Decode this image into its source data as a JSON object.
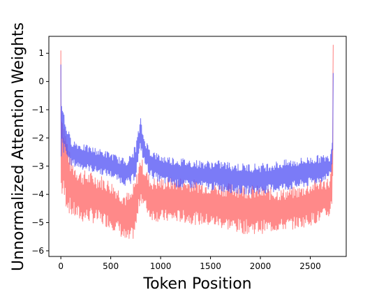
{
  "chart_data": {
    "type": "line",
    "title": "",
    "xlabel": "Token Position",
    "ylabel": "Unnormalized Attention Weights",
    "xlim": [
      -120,
      2860
    ],
    "ylim": [
      -6.2,
      1.6
    ],
    "xticks": [
      0,
      500,
      1000,
      1500,
      2000,
      2500
    ],
    "xtick_labels": [
      "0",
      "500",
      "1000",
      "1500",
      "2000",
      "2500"
    ],
    "yticks": [
      1,
      0,
      -1,
      -2,
      -3,
      -4,
      -5,
      -6
    ],
    "ytick_labels": [
      "1",
      "0",
      "−1",
      "−2",
      "−3",
      "−4",
      "−5",
      "−6"
    ],
    "grid": false,
    "legend": "none",
    "series": [
      {
        "color": "#ff6b6b",
        "opacity": 0.8,
        "description_points": {
          "x": [
            0,
            10,
            40,
            100,
            200,
            300,
            400,
            500,
            600,
            650,
            700,
            750,
            800,
            830,
            900,
            1000,
            1200,
            1400,
            1600,
            1800,
            2000,
            2200,
            2400,
            2600,
            2700,
            2720,
            2730
          ],
          "upper": [
            1.1,
            -0.8,
            -1.5,
            -2.7,
            -3.1,
            -3.2,
            -3.3,
            -3.5,
            -3.8,
            -3.9,
            -3.9,
            -3.4,
            -2.6,
            -2.9,
            -3.4,
            -3.4,
            -3.4,
            -3.5,
            -3.6,
            -3.6,
            -3.7,
            -3.8,
            -3.7,
            -3.4,
            -3.4,
            -2.3,
            1.3
          ],
          "lower": [
            -4.5,
            -4.2,
            -4.4,
            -4.8,
            -5.0,
            -5.0,
            -5.1,
            -5.2,
            -5.5,
            -5.8,
            -5.8,
            -5.4,
            -4.2,
            -4.5,
            -4.9,
            -5.0,
            -5.0,
            -5.1,
            -5.2,
            -5.4,
            -5.4,
            -5.3,
            -5.2,
            -5.0,
            -4.8,
            -4.3,
            -3.0
          ]
        }
      },
      {
        "color": "#5a5af5",
        "opacity": 0.8,
        "description_points": {
          "x": [
            0,
            10,
            40,
            100,
            200,
            300,
            400,
            500,
            600,
            650,
            700,
            750,
            800,
            830,
            900,
            1000,
            1200,
            1400,
            1600,
            1800,
            2000,
            2200,
            2400,
            2600,
            2700,
            2720,
            2730
          ],
          "upper": [
            0.6,
            -0.5,
            -1.3,
            -2.0,
            -2.2,
            -2.3,
            -2.4,
            -2.5,
            -2.7,
            -2.7,
            -2.6,
            -2.2,
            -1.3,
            -1.9,
            -2.4,
            -2.6,
            -2.7,
            -2.8,
            -2.8,
            -2.9,
            -2.9,
            -2.8,
            -2.7,
            -2.6,
            -2.6,
            -1.9,
            0.3
          ],
          "lower": [
            -3.7,
            -2.5,
            -2.6,
            -3.0,
            -3.1,
            -3.2,
            -3.3,
            -3.4,
            -3.6,
            -3.7,
            -3.7,
            -3.4,
            -2.4,
            -2.9,
            -3.4,
            -3.6,
            -3.8,
            -3.8,
            -3.9,
            -4.0,
            -4.0,
            -3.9,
            -3.8,
            -3.6,
            -3.4,
            -3.0,
            -2.4
          ]
        }
      }
    ]
  }
}
